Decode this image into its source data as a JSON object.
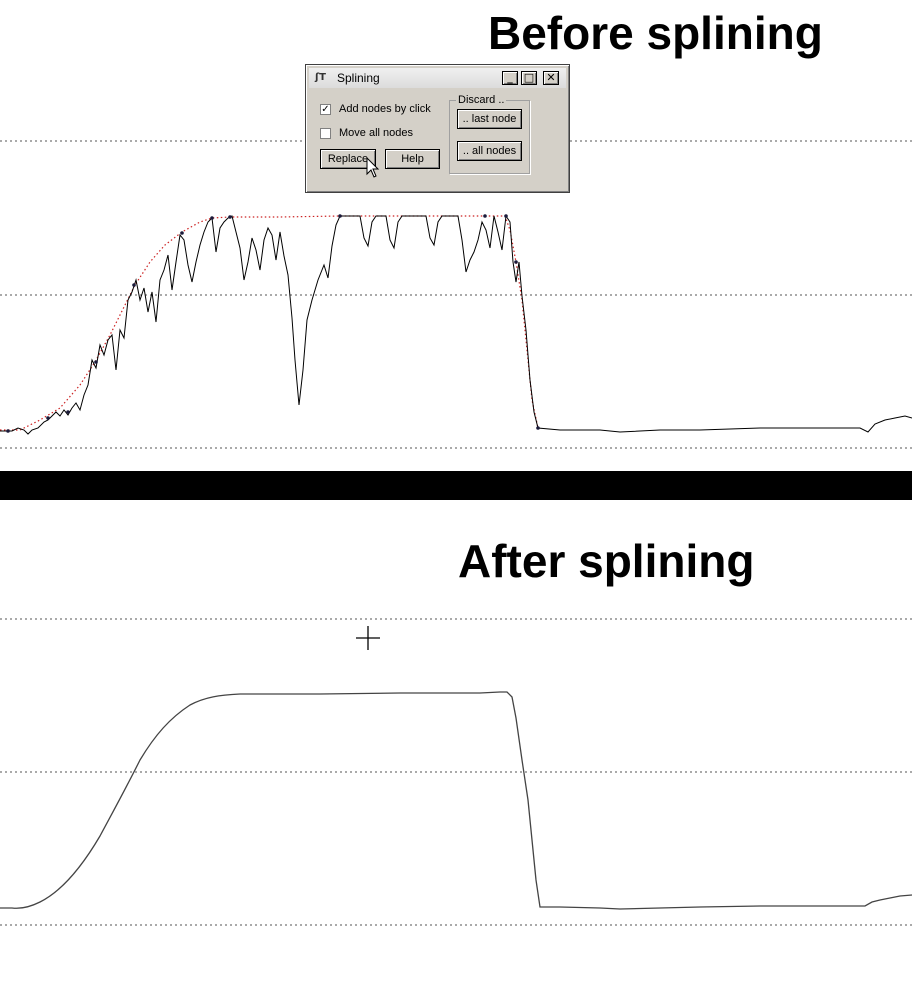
{
  "figure": {
    "title_before": "Before splining",
    "title_after": "After splining"
  },
  "dialog": {
    "title": "Splining",
    "icon": "app-icon",
    "window_buttons": {
      "minimize": "_",
      "maximize": "□",
      "close": "✕"
    },
    "checkboxes": [
      {
        "label": "Add nodes by click",
        "checked": true
      },
      {
        "label": "Move all nodes",
        "checked": false
      }
    ],
    "buttons": {
      "replace": "Replace",
      "help": "Help"
    },
    "discard_group": {
      "label": "Discard ..",
      "last_node": ".. last node",
      "all_nodes": ".. all nodes"
    }
  },
  "colors": {
    "spline_nodes_line": "#cc2222",
    "trace": "#000000",
    "gridline": "#555555"
  }
}
